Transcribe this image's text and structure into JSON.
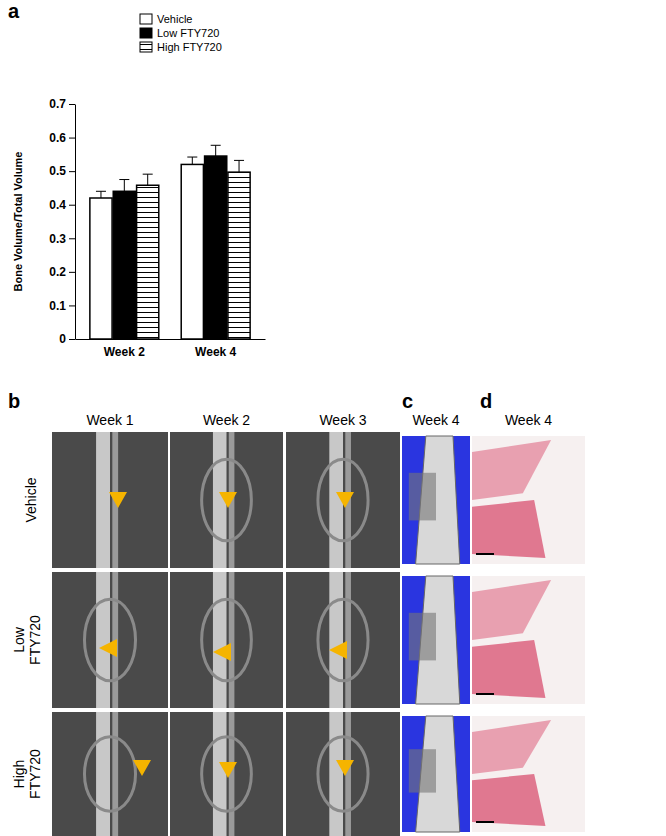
{
  "chart_data": {
    "type": "bar",
    "y_label": "Bone Volume/Total Volume",
    "categories": [
      "Week 2",
      "Week 4"
    ],
    "series": [
      {
        "name": "Vehicle",
        "color": "#ffffff",
        "values": [
          0.42,
          0.52
        ],
        "errors": [
          0.02,
          0.022
        ]
      },
      {
        "name": "Low FTY720",
        "color": "#000000",
        "values": [
          0.44,
          0.545
        ],
        "errors": [
          0.035,
          0.032
        ]
      },
      {
        "name": "High FTY720",
        "color": "#000000",
        "marker": "hatch",
        "values": [
          0.458,
          0.497
        ],
        "errors": [
          0.033,
          0.035
        ]
      }
    ],
    "ylim": [
      0,
      0.7
    ],
    "yticks": [
      0,
      0.1,
      0.2,
      0.3,
      0.4,
      0.5,
      0.6,
      0.7
    ],
    "legend": "upper center",
    "grid": false
  },
  "figure": {
    "panel_labels": [
      "a",
      "b",
      "c",
      "d"
    ],
    "column_titles": [
      "Week 1",
      "Week 2",
      "Week 3",
      "Week 4",
      "Week 4"
    ],
    "row_titles": [
      "Vehicle",
      "Low FTY720",
      "High FTY720"
    ]
  }
}
